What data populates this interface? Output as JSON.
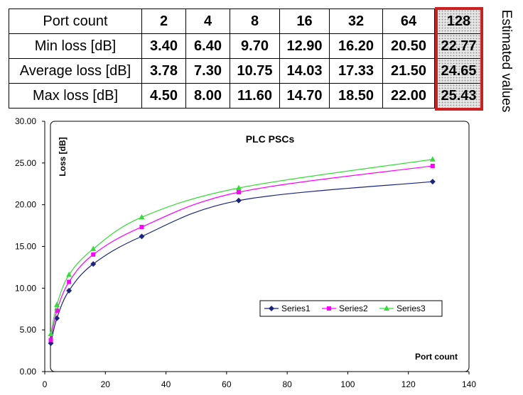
{
  "table": {
    "header_label": "Port count",
    "ports": [
      "2",
      "4",
      "8",
      "16",
      "32",
      "64",
      "128"
    ],
    "rows": [
      {
        "label": "Min loss [dB]",
        "values": [
          "3.40",
          "6.40",
          "9.70",
          "12.90",
          "16.20",
          "20.50",
          "22.77"
        ]
      },
      {
        "label": "Average loss [dB]",
        "values": [
          "3.78",
          "7.30",
          "10.75",
          "14.03",
          "17.33",
          "21.50",
          "24.65"
        ]
      },
      {
        "label": "Max loss [dB]",
        "values": [
          "4.50",
          "8.00",
          "11.60",
          "14.70",
          "18.50",
          "22.00",
          "25.43"
        ]
      }
    ],
    "estimated_note": "Estimated values",
    "highlight_color": "#cc1f1f"
  },
  "chart_data": {
    "type": "line",
    "title": "PLC PSCs",
    "xlabel": "Port count",
    "ylabel": "Loss [dB]",
    "xlim": [
      0,
      140
    ],
    "ylim": [
      0,
      30
    ],
    "xticks": [
      "0",
      "20",
      "40",
      "60",
      "80",
      "100",
      "120",
      "140"
    ],
    "yticks": [
      "0.00",
      "5.00",
      "10.00",
      "15.00",
      "20.00",
      "25.00",
      "30.00"
    ],
    "x": [
      2,
      4,
      8,
      16,
      32,
      64,
      128
    ],
    "series": [
      {
        "name": "Series1",
        "values": [
          3.4,
          6.4,
          9.7,
          12.9,
          16.2,
          20.5,
          22.77
        ],
        "color": "#1a237e",
        "marker": "diamond"
      },
      {
        "name": "Series2",
        "values": [
          3.78,
          7.3,
          10.75,
          14.03,
          17.33,
          21.5,
          24.65
        ],
        "color": "#ff00ff",
        "marker": "square"
      },
      {
        "name": "Series3",
        "values": [
          4.5,
          8.0,
          11.6,
          14.7,
          18.5,
          22.0,
          25.43
        ],
        "color": "#33dd33",
        "marker": "triangle"
      }
    ],
    "grid": false,
    "legend": "center-right"
  }
}
